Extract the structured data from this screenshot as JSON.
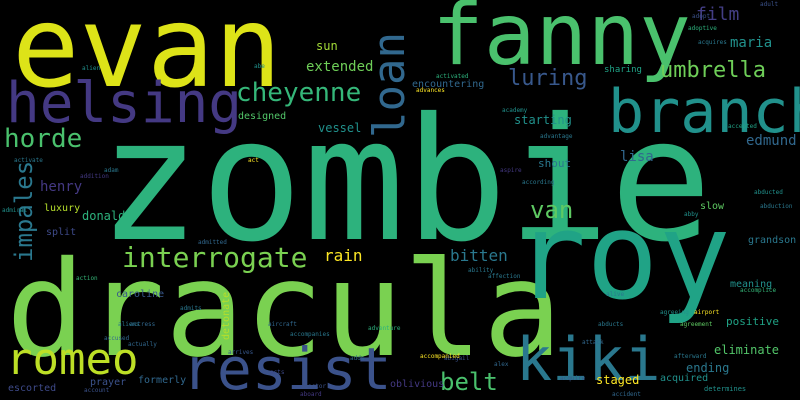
{
  "words": [
    {
      "text": "zombie",
      "color": "#2db27d"
    },
    {
      "text": "dracula",
      "color": "#7ad151"
    },
    {
      "text": "evan",
      "color": "#dde318"
    },
    {
      "text": "fanny",
      "color": "#4ac16d"
    },
    {
      "text": "roy",
      "color": "#20a386"
    },
    {
      "text": "branch",
      "color": "#21918c"
    },
    {
      "text": "helsing",
      "color": "#443983"
    },
    {
      "text": "kiki",
      "color": "#2a788e"
    },
    {
      "text": "resist",
      "color": "#3b528b"
    },
    {
      "text": "romeo",
      "color": "#bddf26"
    },
    {
      "text": "loan",
      "color": "#31688e"
    },
    {
      "text": "cheyenne",
      "color": "#35b779"
    },
    {
      "text": "interrogate",
      "color": "#7ad151"
    },
    {
      "text": "umbrella",
      "color": "#6ece58"
    },
    {
      "text": "horde",
      "color": "#4ac16d"
    },
    {
      "text": "luring",
      "color": "#38588c"
    },
    {
      "text": "belt",
      "color": "#4ac16d"
    },
    {
      "text": "impales",
      "color": "#2a788e"
    },
    {
      "text": "van",
      "color": "#5ec962"
    },
    {
      "text": "film",
      "color": "#433e85"
    },
    {
      "text": "extended",
      "color": "#6ece58"
    },
    {
      "text": "rain",
      "color": "#fde725"
    },
    {
      "text": "bitten",
      "color": "#2a788e"
    },
    {
      "text": "edmund",
      "color": "#31688e"
    },
    {
      "text": "maria",
      "color": "#21918c"
    },
    {
      "text": "henry",
      "color": "#443983"
    },
    {
      "text": "lisa",
      "color": "#31688e"
    },
    {
      "text": "sun",
      "color": "#a2da37"
    },
    {
      "text": "vessel",
      "color": "#21918c"
    },
    {
      "text": "starting",
      "color": "#21918c"
    },
    {
      "text": "eliminate",
      "color": "#52c569"
    },
    {
      "text": "positive",
      "color": "#20a386"
    },
    {
      "text": "staged",
      "color": "#fde725"
    },
    {
      "text": "ending",
      "color": "#2a788e"
    },
    {
      "text": "donald",
      "color": "#2db27d"
    },
    {
      "text": "luxury",
      "color": "#b5de2b"
    },
    {
      "text": "split",
      "color": "#3e4a89"
    },
    {
      "text": "shout",
      "color": "#2a788e"
    },
    {
      "text": "designed",
      "color": "#52c569"
    },
    {
      "text": "caroline",
      "color": "#38588c"
    },
    {
      "text": "grandson",
      "color": "#2a788e"
    },
    {
      "text": "meaning",
      "color": "#21918c"
    },
    {
      "text": "acquired",
      "color": "#21918c"
    },
    {
      "text": "formerly",
      "color": "#31688e"
    },
    {
      "text": "oblivious",
      "color": "#443983"
    },
    {
      "text": "detonate",
      "color": "#b5de2b"
    },
    {
      "text": "slow",
      "color": "#5ec962"
    },
    {
      "text": "sharing",
      "color": "#20a386"
    },
    {
      "text": "encountering",
      "color": "#31688e"
    },
    {
      "text": "prayer",
      "color": "#3b528b"
    },
    {
      "text": "escorted",
      "color": "#3e4a89"
    },
    {
      "text": "abducted",
      "color": "#21918c"
    },
    {
      "text": "abduction",
      "color": "#2a788e"
    },
    {
      "text": "agreement",
      "color": "#5ec962"
    },
    {
      "text": "accomplice",
      "color": "#35b779"
    },
    {
      "text": "actress",
      "color": "#31688e"
    },
    {
      "text": "accompanies",
      "color": "#2a788e"
    },
    {
      "text": "advantage",
      "color": "#2a788e"
    },
    {
      "text": "airport",
      "color": "#fde725"
    },
    {
      "text": "alex",
      "color": "#31688e"
    },
    {
      "text": "alien",
      "color": "#21918c"
    },
    {
      "text": "adoptive",
      "color": "#2db27d"
    },
    {
      "text": "acquires",
      "color": "#2a788e"
    },
    {
      "text": "aircraft",
      "color": "#31688e"
    },
    {
      "text": "adventure",
      "color": "#2db27d"
    },
    {
      "text": "activate",
      "color": "#2a788e"
    },
    {
      "text": "afterward",
      "color": "#2a788e"
    },
    {
      "text": "aboard",
      "color": "#443983"
    },
    {
      "text": "agreeing",
      "color": "#21918c"
    },
    {
      "text": "aspire",
      "color": "#443983"
    },
    {
      "text": "determines",
      "color": "#21918c"
    },
    {
      "text": "abigail",
      "color": "#3b528b"
    },
    {
      "text": "action",
      "color": "#35b779"
    },
    {
      "text": "accused",
      "color": "#31688e"
    },
    {
      "text": "admitted",
      "color": "#31688e"
    },
    {
      "text": "ability",
      "color": "#2a788e"
    },
    {
      "text": "affection",
      "color": "#2a788e"
    },
    {
      "text": "academy",
      "color": "#21918c"
    },
    {
      "text": "according",
      "color": "#2a788e"
    },
    {
      "text": "activated",
      "color": "#2db27d"
    },
    {
      "text": "accident",
      "color": "#31688e"
    },
    {
      "text": "adult",
      "color": "#3b528b"
    },
    {
      "text": "act",
      "color": "#fde725"
    },
    {
      "text": "abby",
      "color": "#21918c"
    },
    {
      "text": "accepted",
      "color": "#20a386"
    },
    {
      "text": "accompanied",
      "color": "#fde725"
    },
    {
      "text": "addition",
      "color": "#443983"
    },
    {
      "text": "admiral",
      "color": "#21918c"
    },
    {
      "text": "actually",
      "color": "#31688e"
    },
    {
      "text": "adds",
      "color": "#31688e"
    },
    {
      "text": "account",
      "color": "#3b528b"
    },
    {
      "text": "acts",
      "color": "#3e4a89"
    },
    {
      "text": "abducts",
      "color": "#2a788e"
    },
    {
      "text": "acquire",
      "color": "#38588c"
    },
    {
      "text": "adopt",
      "color": "#3b528b"
    },
    {
      "text": "aliens",
      "color": "#2a788e"
    },
    {
      "text": "admits",
      "color": "#2a788e"
    },
    {
      "text": "advances",
      "color": "#fde725"
    },
    {
      "text": "adam",
      "color": "#2a788e"
    },
    {
      "text": "actor",
      "color": "#3b528b"
    },
    {
      "text": "abe",
      "color": "#21918c"
    },
    {
      "text": "arrives",
      "color": "#38588c"
    },
    {
      "text": "alive",
      "color": "#2a788e"
    },
    {
      "text": "attack",
      "color": "#31688e"
    }
  ]
}
